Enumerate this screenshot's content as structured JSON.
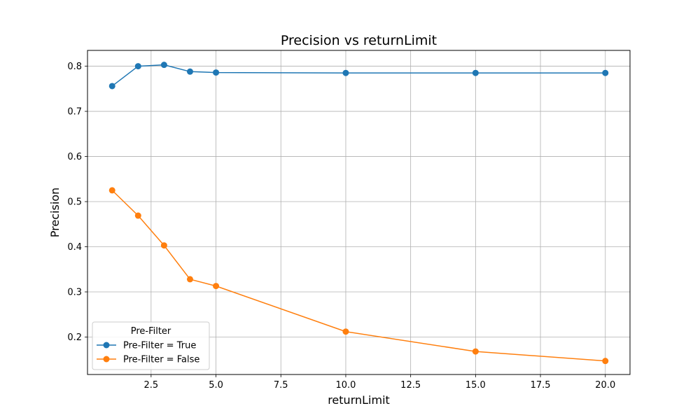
{
  "chart_data": {
    "type": "line",
    "title": "Precision vs returnLimit",
    "xlabel": "returnLimit",
    "ylabel": "Precision",
    "xlim": [
      0.05,
      20.95
    ],
    "ylim": [
      0.117,
      0.835
    ],
    "x_ticks": [
      2.5,
      5.0,
      7.5,
      10.0,
      12.5,
      15.0,
      17.5,
      20.0
    ],
    "x_tick_labels": [
      "2.5",
      "5.0",
      "7.5",
      "10.0",
      "12.5",
      "15.0",
      "17.5",
      "20.0"
    ],
    "y_ticks": [
      0.2,
      0.3,
      0.4,
      0.5,
      0.6,
      0.7,
      0.8
    ],
    "y_tick_labels": [
      "0.2",
      "0.3",
      "0.4",
      "0.5",
      "0.6",
      "0.7",
      "0.8"
    ],
    "grid": true,
    "legend": {
      "title": "Pre-Filter",
      "placement": "lower-left"
    },
    "x": [
      1,
      2,
      3,
      4,
      5,
      10,
      15,
      20
    ],
    "series": [
      {
        "name": "Pre-Filter = True",
        "color": "#1f77b4",
        "values": [
          0.756,
          0.8,
          0.803,
          0.788,
          0.786,
          0.785,
          0.785,
          0.785
        ]
      },
      {
        "name": "Pre-Filter = False",
        "color": "#ff7f0e",
        "values": [
          0.525,
          0.469,
          0.403,
          0.328,
          0.313,
          0.212,
          0.168,
          0.147
        ]
      }
    ]
  }
}
